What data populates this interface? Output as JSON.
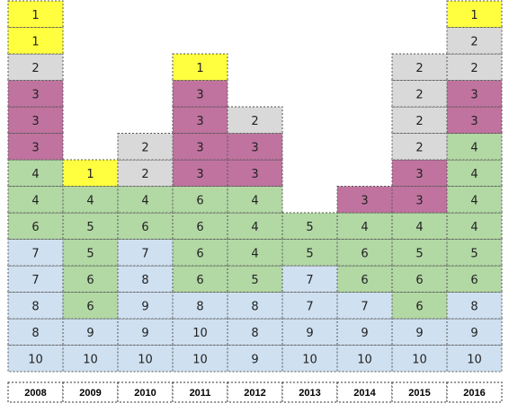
{
  "chart_data": {
    "type": "table",
    "colors": {
      "1": "#ffff40",
      "2": "#d9d9d9",
      "3": "#c0739f",
      "4": "#b2d8a4",
      "5": "#b2d8a4",
      "6": "#b2d8a4",
      "7": "#cfe0f0",
      "8": "#cfe0f0",
      "9": "#cfe0f0",
      "10": "#cfe0f0"
    },
    "columns": [
      {
        "year": "2008",
        "values": [
          10,
          8,
          8,
          7,
          7,
          6,
          4,
          4,
          3,
          3,
          3,
          2,
          1,
          1
        ]
      },
      {
        "year": "2009",
        "values": [
          10,
          9,
          6,
          6,
          5,
          5,
          4,
          1
        ]
      },
      {
        "year": "2010",
        "values": [
          10,
          9,
          9,
          8,
          7,
          6,
          4,
          2,
          2
        ]
      },
      {
        "year": "2011",
        "values": [
          10,
          10,
          8,
          6,
          6,
          6,
          6,
          3,
          3,
          3,
          3,
          1
        ]
      },
      {
        "year": "2012",
        "values": [
          9,
          8,
          8,
          5,
          4,
          4,
          4,
          3,
          3,
          2
        ]
      },
      {
        "year": "2013",
        "values": [
          10,
          9,
          7,
          7,
          5,
          5
        ]
      },
      {
        "year": "2014",
        "values": [
          10,
          9,
          7,
          6,
          6,
          4,
          3
        ]
      },
      {
        "year": "2015",
        "values": [
          10,
          9,
          6,
          6,
          5,
          4,
          3,
          3,
          2,
          2,
          2,
          2
        ]
      },
      {
        "year": "2016",
        "values": [
          10,
          9,
          8,
          6,
          5,
          4,
          4,
          4,
          4,
          3,
          3,
          2,
          2,
          1
        ]
      }
    ]
  }
}
